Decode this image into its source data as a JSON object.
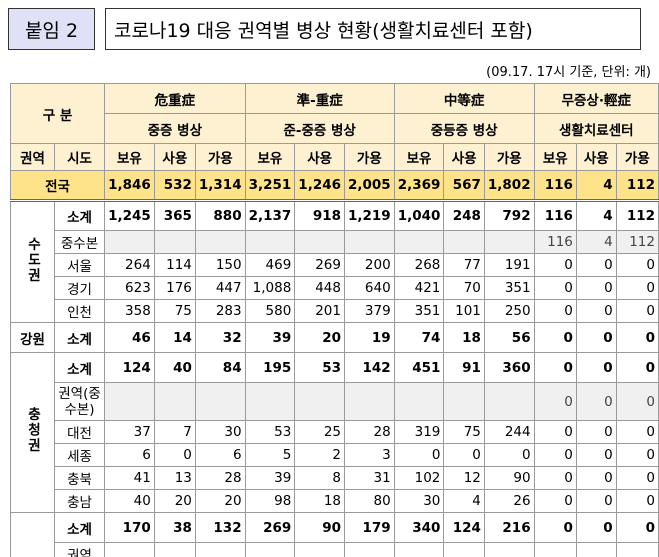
{
  "header": {
    "badge": "붙임 2",
    "title": "코로나19 대응 권역별 병상 현황(생활치료센터 포함)",
    "note": "(09.17. 17시 기준, 단위: 개)"
  },
  "table": {
    "corner": "구 분",
    "col_region": "권역",
    "col_city": "시도",
    "groups": [
      {
        "label": "危重症",
        "sub": "중증 병상"
      },
      {
        "label": "準-重症",
        "sub": "준-중증 병상"
      },
      {
        "label": "中等症",
        "sub": "중등증 병상"
      },
      {
        "label": "무증상·輕症",
        "sub": "생활치료센터"
      }
    ],
    "metrics": [
      "보유",
      "사용",
      "가용"
    ],
    "total": {
      "label": "전국",
      "values": [
        "1,846",
        "532",
        "1,314",
        "3,251",
        "1,246",
        "2,005",
        "2,369",
        "567",
        "1,802",
        "116",
        "4",
        "112"
      ]
    },
    "regions": [
      {
        "name": "수도권",
        "rows": [
          {
            "name": "소계",
            "values": [
              "1,245",
              "365",
              "880",
              "2,137",
              "918",
              "1,219",
              "1,040",
              "248",
              "792",
              "116",
              "4",
              "112"
            ]
          },
          {
            "name": "중수본",
            "values": [
              null,
              null,
              null,
              null,
              null,
              null,
              null,
              null,
              null,
              "116",
              "4",
              "112"
            ]
          },
          {
            "name": "서울",
            "values": [
              "264",
              "114",
              "150",
              "469",
              "269",
              "200",
              "268",
              "77",
              "191",
              "0",
              "0",
              "0"
            ]
          },
          {
            "name": "경기",
            "values": [
              "623",
              "176",
              "447",
              "1,088",
              "448",
              "640",
              "421",
              "70",
              "351",
              "0",
              "0",
              "0"
            ]
          },
          {
            "name": "인천",
            "values": [
              "358",
              "75",
              "283",
              "580",
              "201",
              "379",
              "351",
              "101",
              "250",
              "0",
              "0",
              "0"
            ]
          }
        ]
      },
      {
        "name": "강원",
        "rows": [
          {
            "name": "소계",
            "values": [
              "46",
              "14",
              "32",
              "39",
              "20",
              "19",
              "74",
              "18",
              "56",
              "0",
              "0",
              "0"
            ]
          }
        ]
      },
      {
        "name": "충청권",
        "rows": [
          {
            "name": "소계",
            "values": [
              "124",
              "40",
              "84",
              "195",
              "53",
              "142",
              "451",
              "91",
              "360",
              "0",
              "0",
              "0"
            ]
          },
          {
            "name": "권역(중수본)",
            "values": [
              null,
              null,
              null,
              null,
              null,
              null,
              null,
              null,
              null,
              "0",
              "0",
              "0"
            ]
          },
          {
            "name": "대전",
            "values": [
              "37",
              "7",
              "30",
              "53",
              "25",
              "28",
              "319",
              "75",
              "244",
              "0",
              "0",
              "0"
            ]
          },
          {
            "name": "세종",
            "values": [
              "6",
              "0",
              "6",
              "5",
              "2",
              "3",
              "0",
              "0",
              "0",
              "0",
              "0",
              "0"
            ]
          },
          {
            "name": "충북",
            "values": [
              "41",
              "13",
              "28",
              "39",
              "8",
              "31",
              "102",
              "12",
              "90",
              "0",
              "0",
              "0"
            ]
          },
          {
            "name": "충남",
            "values": [
              "40",
              "20",
              "20",
              "98",
              "18",
              "80",
              "30",
              "4",
              "26",
              "0",
              "0",
              "0"
            ]
          }
        ]
      },
      {
        "rows": [
          {
            "name": "소계",
            "values": [
              "170",
              "38",
              "132",
              "269",
              "90",
              "179",
              "340",
              "124",
              "216",
              "0",
              "0",
              "0"
            ]
          },
          {
            "name": "권역"
          }
        ]
      }
    ]
  }
}
